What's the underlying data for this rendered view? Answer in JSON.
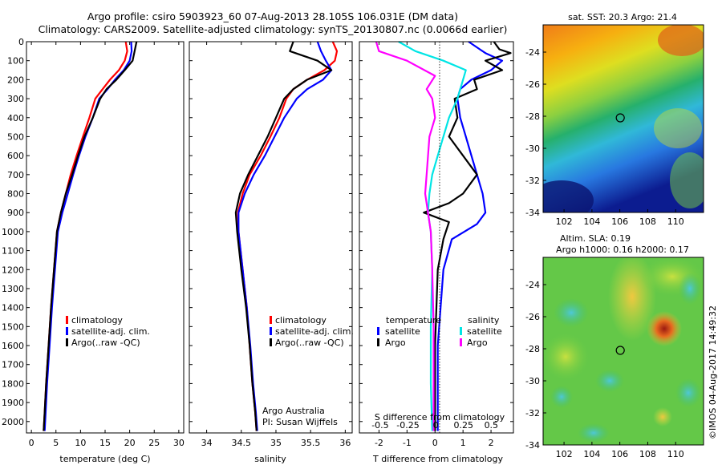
{
  "header": {
    "line1": "Argo profile: csiro 5903923_60 07-Aug-2013 28.105S 106.031E (DM data)",
    "line2": "Climatology: CARS2009. Satellite-adjusted climatology: synTS_20130807.nc (0.0066d earlier)"
  },
  "colors": {
    "climatology": "#ff0000",
    "satellite": "#0000ff",
    "argo": "#000000",
    "satellite_s": "#00e5e5",
    "argo_s": "#ff00ff"
  },
  "chart_data": [
    {
      "id": "temperature",
      "type": "line",
      "xlabel": "temperature (deg C)",
      "ylabel": "",
      "xlim": [
        -1,
        31
      ],
      "ylim": [
        2060,
        0
      ],
      "xticks": [
        0,
        5,
        10,
        15,
        20,
        25,
        30
      ],
      "yticks": [
        0,
        100,
        200,
        300,
        400,
        500,
        600,
        700,
        800,
        900,
        1000,
        1100,
        1200,
        1300,
        1400,
        1500,
        1600,
        1700,
        1800,
        1900,
        2000
      ],
      "legend": {
        "position": "lower-middle",
        "entries": [
          "climatology",
          "satellite-adj. clim.",
          "Argo(..raw -QC)"
        ]
      },
      "series": [
        {
          "name": "climatology",
          "color": "#ff0000",
          "x": [
            19.2,
            19.5,
            19.0,
            17.8,
            16.0,
            14.5,
            13.0,
            11.8,
            10.5,
            9.2,
            8.0,
            7.0,
            6.0,
            5.2,
            4.6,
            4.0,
            3.5,
            3.0,
            2.7,
            2.5
          ],
          "y": [
            0,
            50,
            100,
            150,
            200,
            250,
            300,
            400,
            500,
            600,
            700,
            800,
            900,
            1000,
            1200,
            1400,
            1600,
            1800,
            1950,
            2050
          ]
        },
        {
          "name": "satellite-adj. clim.",
          "color": "#0000ff",
          "x": [
            20.3,
            20.4,
            20.0,
            18.8,
            17.0,
            15.5,
            13.8,
            12.5,
            11.0,
            9.7,
            8.5,
            7.4,
            6.3,
            5.4,
            4.8,
            4.2,
            3.7,
            3.2,
            2.9,
            2.7
          ],
          "y": [
            0,
            50,
            100,
            150,
            200,
            250,
            300,
            400,
            500,
            600,
            700,
            800,
            900,
            1000,
            1200,
            1400,
            1600,
            1800,
            1950,
            2050
          ]
        },
        {
          "name": "Argo(..raw -QC)",
          "color": "#000000",
          "x": [
            21.4,
            21.0,
            20.6,
            19.0,
            17.3,
            15.3,
            14.0,
            12.5,
            10.8,
            9.5,
            8.3,
            7.0,
            6.0,
            5.2,
            4.6,
            4.0,
            3.5,
            3.0,
            2.7,
            2.5
          ],
          "y": [
            0,
            50,
            100,
            150,
            200,
            250,
            300,
            400,
            500,
            600,
            700,
            800,
            900,
            1000,
            1200,
            1400,
            1600,
            1800,
            1950,
            2050
          ]
        }
      ]
    },
    {
      "id": "salinity",
      "type": "line",
      "xlabel": "salinity",
      "ylabel": "",
      "xlim": [
        33.75,
        36.1
      ],
      "ylim": [
        2060,
        0
      ],
      "xticks": [
        34,
        34.5,
        35,
        35.5,
        36
      ],
      "legend": {
        "position": "lower-middle",
        "entries": [
          "climatology",
          "satellite-adj. clim.",
          "Argo(..raw -QC)"
        ]
      },
      "series": [
        {
          "name": "climatology",
          "color": "#ff0000",
          "x": [
            35.82,
            35.88,
            35.85,
            35.7,
            35.45,
            35.25,
            35.15,
            35.05,
            34.92,
            34.78,
            34.62,
            34.52,
            34.45,
            34.46,
            34.52,
            34.58,
            34.62,
            34.66,
            34.7,
            34.72
          ],
          "y": [
            0,
            50,
            100,
            150,
            200,
            250,
            300,
            400,
            500,
            600,
            700,
            800,
            900,
            1000,
            1200,
            1400,
            1600,
            1800,
            1950,
            2050
          ]
        },
        {
          "name": "satellite-adj. clim.",
          "color": "#0000ff",
          "x": [
            35.6,
            35.65,
            35.72,
            35.8,
            35.68,
            35.45,
            35.3,
            35.12,
            34.98,
            34.84,
            34.68,
            34.55,
            34.46,
            34.46,
            34.52,
            34.58,
            34.63,
            34.67,
            34.71,
            34.73
          ],
          "y": [
            0,
            50,
            100,
            150,
            200,
            250,
            300,
            400,
            500,
            600,
            700,
            800,
            900,
            1000,
            1200,
            1400,
            1600,
            1800,
            1950,
            2050
          ]
        },
        {
          "name": "Argo(..raw -QC)",
          "color": "#000000",
          "x": [
            35.25,
            35.2,
            35.6,
            35.8,
            35.45,
            35.25,
            35.12,
            35.0,
            34.88,
            34.74,
            34.6,
            34.48,
            34.42,
            34.44,
            34.5,
            34.57,
            34.62,
            34.66,
            34.7,
            34.72
          ],
          "y": [
            0,
            50,
            100,
            150,
            200,
            250,
            300,
            400,
            500,
            600,
            700,
            800,
            900,
            1000,
            1200,
            1400,
            1600,
            1800,
            1950,
            2050
          ]
        }
      ],
      "annotation": {
        "line1": "Argo Australia",
        "line2": "PI: Susan Wijffels"
      }
    },
    {
      "id": "differences",
      "type": "line",
      "xlabel": "T difference from climatology",
      "x2label": "S difference from climatology",
      "xlim": [
        -2.7,
        2.8
      ],
      "ylim": [
        2060,
        0
      ],
      "xticks": [
        -2,
        -1,
        0,
        1,
        2
      ],
      "x2ticks": [
        -0.5,
        -0.25,
        0,
        0.25,
        0.5
      ],
      "x2tick_labels": [
        "-0.5",
        "-0.25",
        "0",
        "0.25",
        "0.5"
      ],
      "legend": {
        "position": "lower-middle",
        "temperature_title": "temperature",
        "salinity_title": "salinity",
        "entries": [
          "satellite",
          "Argo",
          "satellite",
          "Argo"
        ]
      },
      "series": [
        {
          "name": "temperature satellite",
          "color": "#0000ff",
          "x": [
            1.2,
            1.6,
            1.8,
            2.4,
            2.0,
            1.3,
            0.9,
            0.8,
            0.9,
            1.1,
            1.3,
            1.5,
            1.7,
            1.8,
            1.5,
            0.6,
            0.3,
            0.2,
            0.1,
            0.1,
            0.1
          ],
          "y": [
            0,
            40,
            60,
            100,
            150,
            200,
            250,
            300,
            400,
            500,
            600,
            700,
            800,
            900,
            960,
            1040,
            1200,
            1400,
            1600,
            1800,
            2050
          ]
        },
        {
          "name": "temperature Argo",
          "color": "#000000",
          "x": [
            2.1,
            2.3,
            2.7,
            1.8,
            2.4,
            1.4,
            1.5,
            0.7,
            0.8,
            0.5,
            1.5,
            1.0,
            0.5,
            -0.4,
            0.5,
            0.3,
            0.1,
            0.05,
            0.0,
            0.0,
            0.0
          ],
          "y": [
            0,
            40,
            60,
            100,
            150,
            200,
            250,
            300,
            400,
            500,
            700,
            800,
            850,
            900,
            950,
            1040,
            1200,
            1400,
            1600,
            1800,
            2050
          ]
        },
        {
          "name": "salinity satellite",
          "color": "#00e5e5",
          "x": [
            -1.3,
            -0.7,
            0.3,
            1.1,
            1.0,
            0.8,
            0.5,
            0.3,
            0.1,
            -0.1,
            -0.2,
            -0.25,
            -0.15,
            -0.1,
            -0.15,
            -0.15,
            -0.1
          ],
          "y": [
            0,
            50,
            100,
            150,
            200,
            300,
            400,
            500,
            600,
            700,
            800,
            900,
            1000,
            1200,
            1500,
            1800,
            2050
          ]
        },
        {
          "name": "salinity Argo",
          "color": "#ff00ff",
          "x": [
            -2.1,
            -2.0,
            -1.0,
            0.0,
            -0.3,
            -0.1,
            0.0,
            -0.2,
            -0.3,
            -0.35,
            -0.25,
            -0.15,
            -0.1,
            -0.05,
            -0.05,
            -0.05
          ],
          "y": [
            0,
            50,
            100,
            180,
            250,
            300,
            400,
            500,
            700,
            800,
            900,
            1000,
            1200,
            1500,
            1800,
            2050
          ]
        }
      ]
    },
    {
      "id": "sst-map",
      "type": "heatmap",
      "title": "sat. SST: 20.3 Argo: 21.4",
      "xlim": [
        100.5,
        112
      ],
      "ylim": [
        -34,
        -22.3
      ],
      "xticks": [
        102,
        104,
        106,
        108,
        110
      ],
      "yticks": [
        -24,
        -26,
        -28,
        -30,
        -32,
        -34
      ],
      "marker": {
        "x": 106.03,
        "y": -28.1
      }
    },
    {
      "id": "sla-map",
      "type": "heatmap",
      "title": "Altim. SLA: 0.19",
      "subtitle": "Argo h1000: 0.16 h2000: 0.17",
      "xlim": [
        100.5,
        112
      ],
      "ylim": [
        -34,
        -22.3
      ],
      "xticks": [
        102,
        104,
        106,
        108,
        110
      ],
      "yticks": [
        -24,
        -26,
        -28,
        -30,
        -32,
        -34
      ],
      "marker": {
        "x": 106.03,
        "y": -28.1
      }
    }
  ],
  "credit": "©IMOS 04-Aug-2017 14:49:32"
}
